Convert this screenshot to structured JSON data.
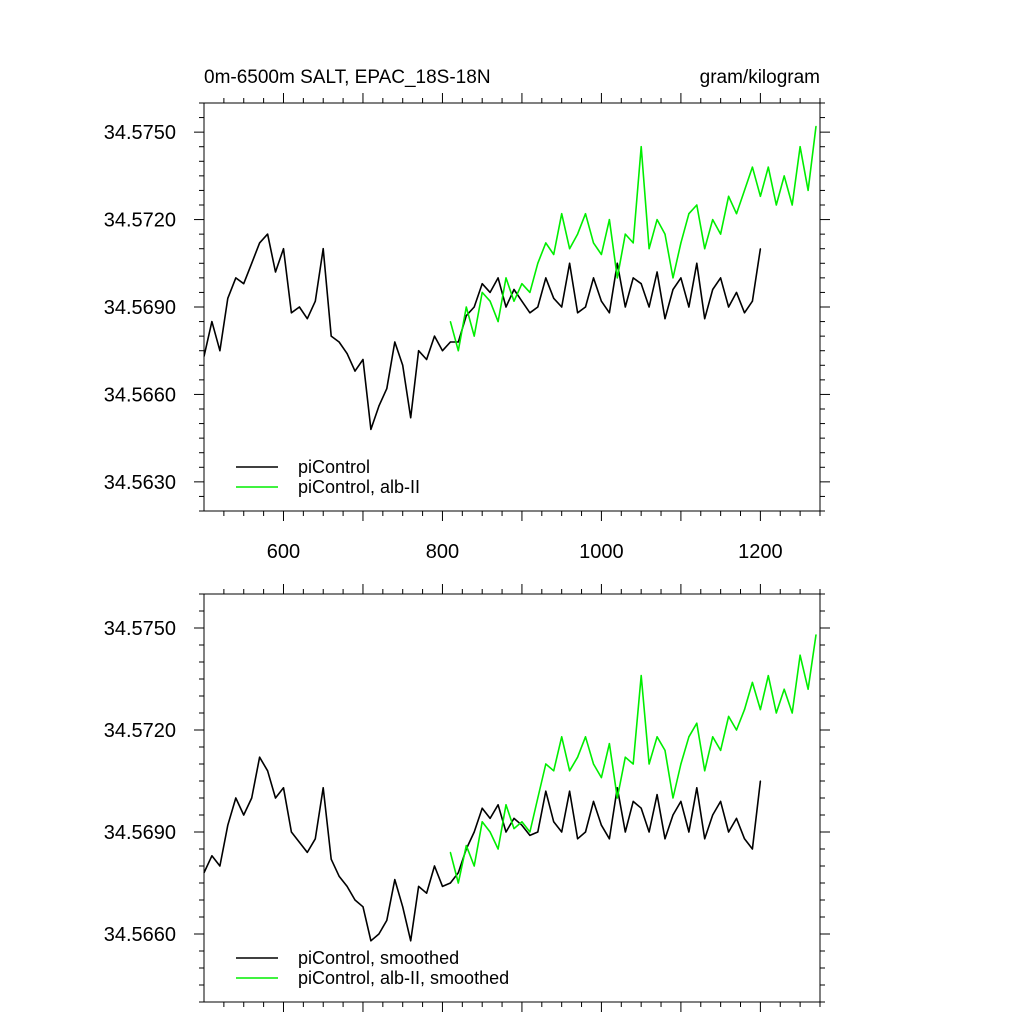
{
  "chart_data": [
    {
      "type": "line",
      "title_left": "0m-6500m SALT, EPAC_18S-18N",
      "title_right": "gram/kilogram",
      "xlim": [
        500,
        1275
      ],
      "ylim": [
        34.562,
        34.576
      ],
      "xticks": [
        600,
        800,
        1000,
        1200
      ],
      "xticklabels": [
        "600",
        "800",
        "1000",
        "1200"
      ],
      "yticks": [
        34.563,
        34.566,
        34.569,
        34.572,
        34.575
      ],
      "yticklabels": [
        "34.5630",
        "34.5660",
        "34.5690",
        "34.5720",
        "34.5750"
      ],
      "legend_placement": "bottom-left",
      "series": [
        {
          "name": "piControl",
          "color": "#000000",
          "x": [
            500,
            510,
            520,
            530,
            540,
            550,
            560,
            570,
            580,
            590,
            600,
            610,
            620,
            630,
            640,
            650,
            660,
            670,
            680,
            690,
            700,
            710,
            720,
            730,
            740,
            750,
            760,
            770,
            780,
            790,
            800,
            810,
            820,
            830,
            840,
            850,
            860,
            870,
            880,
            890,
            900,
            910,
            920,
            930,
            940,
            950,
            960,
            970,
            980,
            990,
            1000,
            1010,
            1020,
            1030,
            1040,
            1050,
            1060,
            1070,
            1080,
            1090,
            1100,
            1110,
            1120,
            1130,
            1140,
            1150,
            1160,
            1170,
            1180,
            1190,
            1200
          ],
          "values": [
            34.5673,
            34.5685,
            34.5675,
            34.5693,
            34.57,
            34.5698,
            34.5705,
            34.5712,
            34.5715,
            34.5702,
            34.571,
            34.5688,
            34.569,
            34.5686,
            34.5692,
            34.571,
            34.568,
            34.5678,
            34.5674,
            34.5668,
            34.5672,
            34.5648,
            34.5656,
            34.5662,
            34.5678,
            34.567,
            34.5652,
            34.5675,
            34.5672,
            34.568,
            34.5675,
            34.5678,
            34.5678,
            34.5687,
            34.569,
            34.5698,
            34.5695,
            34.57,
            34.569,
            34.5696,
            34.5692,
            34.5688,
            34.569,
            34.57,
            34.5693,
            34.569,
            34.5705,
            34.5688,
            34.569,
            34.57,
            34.5692,
            34.5688,
            34.5705,
            34.569,
            34.57,
            34.5698,
            34.569,
            34.5702,
            34.5686,
            34.5696,
            34.57,
            34.569,
            34.5705,
            34.5686,
            34.5696,
            34.57,
            34.569,
            34.5695,
            34.5688,
            34.5692,
            34.571
          ]
        },
        {
          "name": "piControl, alb-II",
          "color": "#00ee00",
          "x": [
            810,
            820,
            830,
            840,
            850,
            860,
            870,
            880,
            890,
            900,
            910,
            920,
            930,
            940,
            950,
            960,
            970,
            980,
            990,
            1000,
            1010,
            1020,
            1030,
            1040,
            1050,
            1060,
            1070,
            1080,
            1090,
            1100,
            1110,
            1120,
            1130,
            1140,
            1150,
            1160,
            1170,
            1180,
            1190,
            1200,
            1210,
            1220,
            1230,
            1240,
            1250,
            1260,
            1270
          ],
          "values": [
            34.5685,
            34.5675,
            34.569,
            34.568,
            34.5695,
            34.5692,
            34.5685,
            34.57,
            34.5692,
            34.5698,
            34.5695,
            34.5705,
            34.5712,
            34.5708,
            34.5722,
            34.571,
            34.5715,
            34.5722,
            34.5712,
            34.5708,
            34.572,
            34.57,
            34.5715,
            34.5712,
            34.5745,
            34.571,
            34.572,
            34.5715,
            34.57,
            34.5712,
            34.5722,
            34.5725,
            34.571,
            34.572,
            34.5715,
            34.5728,
            34.5722,
            34.573,
            34.5738,
            34.5728,
            34.5738,
            34.5725,
            34.5735,
            34.5725,
            34.5745,
            34.573,
            34.5752
          ]
        }
      ]
    },
    {
      "type": "line",
      "xlim": [
        500,
        1275
      ],
      "ylim": [
        34.564,
        34.576
      ],
      "xticks": [
        600,
        800,
        1000,
        1200
      ],
      "yticks": [
        34.566,
        34.569,
        34.572,
        34.575
      ],
      "yticklabels": [
        "34.5660",
        "34.5690",
        "34.5720",
        "34.5750"
      ],
      "legend_placement": "bottom-left",
      "series": [
        {
          "name": "piControl, smoothed",
          "color": "#000000",
          "x": [
            500,
            510,
            520,
            530,
            540,
            550,
            560,
            570,
            580,
            590,
            600,
            610,
            620,
            630,
            640,
            650,
            660,
            670,
            680,
            690,
            700,
            710,
            720,
            730,
            740,
            750,
            760,
            770,
            780,
            790,
            800,
            810,
            820,
            830,
            840,
            850,
            860,
            870,
            880,
            890,
            900,
            910,
            920,
            930,
            940,
            950,
            960,
            970,
            980,
            990,
            1000,
            1010,
            1020,
            1030,
            1040,
            1050,
            1060,
            1070,
            1080,
            1090,
            1100,
            1110,
            1120,
            1130,
            1140,
            1150,
            1160,
            1170,
            1180,
            1190,
            1200
          ],
          "values": [
            34.5678,
            34.5683,
            34.568,
            34.5692,
            34.57,
            34.5695,
            34.57,
            34.5712,
            34.5708,
            34.57,
            34.5703,
            34.569,
            34.5687,
            34.5684,
            34.5688,
            34.5703,
            34.5682,
            34.5677,
            34.5674,
            34.567,
            34.5668,
            34.5658,
            34.566,
            34.5664,
            34.5676,
            34.5668,
            34.5658,
            34.5674,
            34.5672,
            34.568,
            34.5674,
            34.5675,
            34.5678,
            34.5685,
            34.569,
            34.5697,
            34.5694,
            34.5698,
            34.569,
            34.5694,
            34.5692,
            34.5689,
            34.569,
            34.5702,
            34.5693,
            34.569,
            34.5702,
            34.5688,
            34.569,
            34.5699,
            34.5692,
            34.5688,
            34.5703,
            34.569,
            34.5699,
            34.5697,
            34.569,
            34.5701,
            34.5688,
            34.5695,
            34.5699,
            34.569,
            34.5703,
            34.5688,
            34.5695,
            34.5699,
            34.569,
            34.5694,
            34.5688,
            34.5685,
            34.5705
          ]
        },
        {
          "name": "piControl, alb-II, smoothed",
          "color": "#00ee00",
          "x": [
            810,
            820,
            830,
            840,
            850,
            860,
            870,
            880,
            890,
            900,
            910,
            920,
            930,
            940,
            950,
            960,
            970,
            980,
            990,
            1000,
            1010,
            1020,
            1030,
            1040,
            1050,
            1060,
            1070,
            1080,
            1090,
            1100,
            1110,
            1120,
            1130,
            1140,
            1150,
            1160,
            1170,
            1180,
            1190,
            1200,
            1210,
            1220,
            1230,
            1240,
            1250,
            1260,
            1270
          ],
          "values": [
            34.5684,
            34.5675,
            34.5686,
            34.568,
            34.5693,
            34.569,
            34.5685,
            34.5698,
            34.5691,
            34.5693,
            34.569,
            34.57,
            34.571,
            34.5708,
            34.5718,
            34.5708,
            34.5712,
            34.5718,
            34.571,
            34.5706,
            34.5716,
            34.57,
            34.5712,
            34.571,
            34.5736,
            34.571,
            34.5718,
            34.5714,
            34.57,
            34.571,
            34.5718,
            34.5722,
            34.5708,
            34.5718,
            34.5714,
            34.5724,
            34.572,
            34.5726,
            34.5734,
            34.5726,
            34.5736,
            34.5725,
            34.5732,
            34.5725,
            34.5742,
            34.5732,
            34.5748
          ]
        }
      ]
    }
  ]
}
